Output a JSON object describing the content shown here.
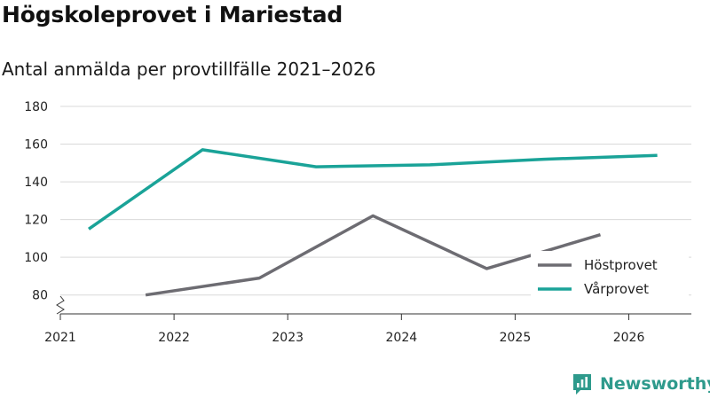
{
  "chart_data": {
    "type": "line",
    "title": "Högskoleprovet i Mariestad",
    "subtitle": "Antal anmälda per provtillfälle 2021–2026",
    "xlabel": "",
    "ylabel": "",
    "ylim": [
      70,
      180
    ],
    "xlim": [
      2021,
      2026.55
    ],
    "y_ticks": [
      80,
      100,
      120,
      140,
      160,
      180
    ],
    "x_ticks": [
      2021,
      2022,
      2023,
      2024,
      2025,
      2026
    ],
    "grid": true,
    "y_axis_break": true,
    "legend_position": "bottom-right",
    "series": [
      {
        "name": "Höstprovet",
        "color": "#6d6c72",
        "x": [
          2021.75,
          2022.75,
          2023.75,
          2024.75,
          2025.75
        ],
        "values": [
          80,
          89,
          122,
          94,
          112
        ]
      },
      {
        "name": "Vårprovet",
        "color": "#1aa398",
        "x": [
          2021.25,
          2022.25,
          2023.25,
          2024.25,
          2025.25,
          2026.25
        ],
        "values": [
          115,
          157,
          148,
          149,
          152,
          154
        ]
      }
    ]
  },
  "logo": {
    "text": "Newsworthy",
    "color": "#2e9a8c"
  }
}
